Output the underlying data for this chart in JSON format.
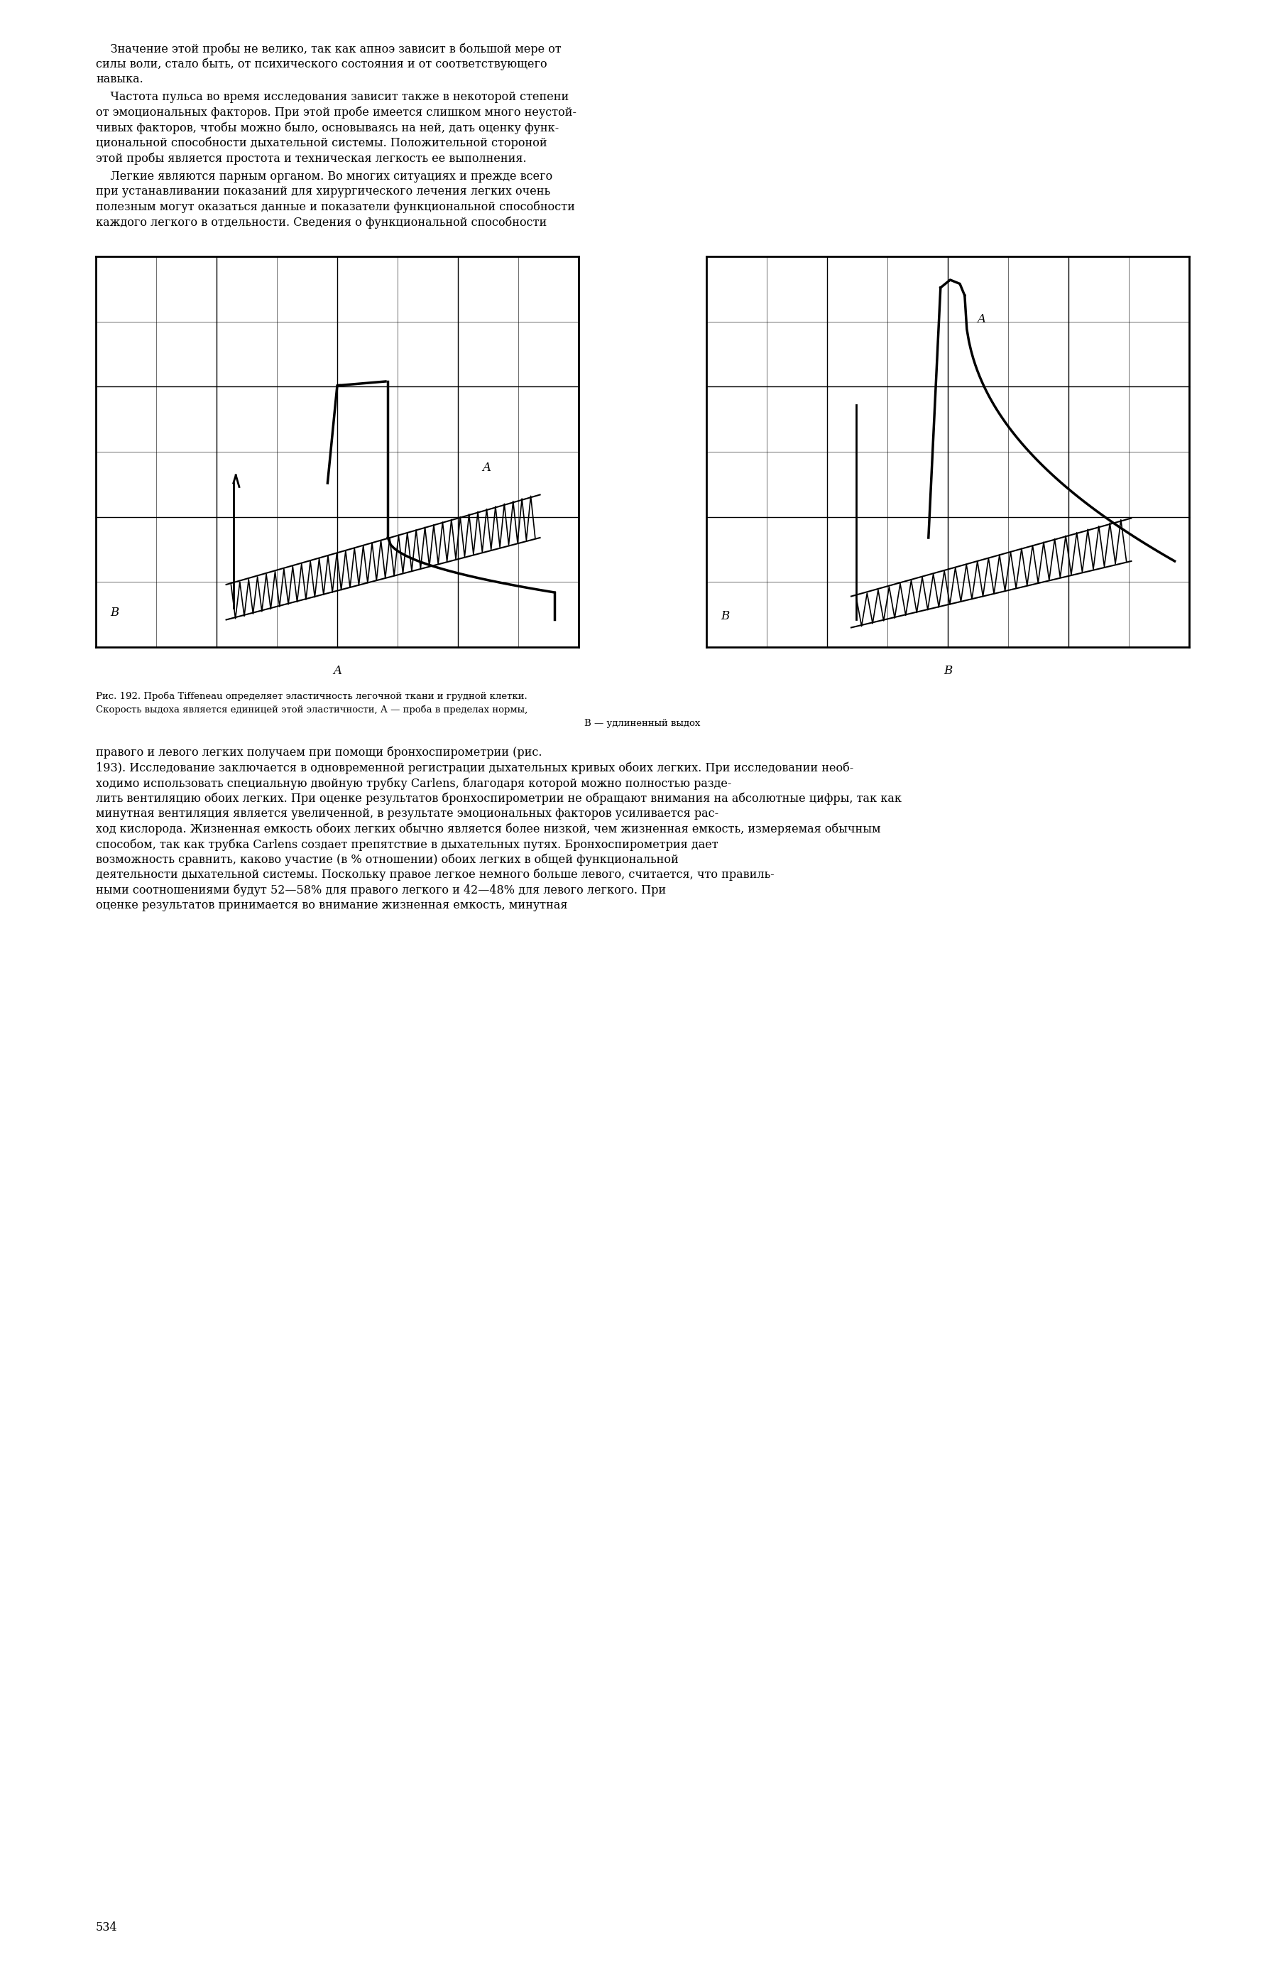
{
  "bg_color": "#ffffff",
  "text_color": "#000000",
  "page_width": 18.1,
  "page_height": 27.72,
  "top_para1_lines": [
    "    Значение этой пробы не велико, так как апноэ зависит в большой мере от",
    "силы воли, стало быть, от психического состояния и от соответствующего",
    "навыка."
  ],
  "top_para2_lines": [
    "    Частота пульса во время исследования зависит также в некоторой степени",
    "от эмоциональных факторов. При этой пробе имеется слишком много неустой-",
    "чивых факторов, чтобы можно было, основываясь на ней, дать оценку функ-",
    "циональной способности дыхательной системы. Положительной стороной",
    "этой пробы является простота и техническая легкость ее выполнения."
  ],
  "top_para3_lines": [
    "    Легкие являются парным органом. Во многих ситуациях и прежде всего",
    "при устанавливании показаний для хирургического лечения легких очень",
    "полезным могут оказаться данные и показатели функциональной способности",
    "каждого легкого в отдельности. Сведения о функциональной способности"
  ],
  "caption_lines": [
    "Рис. 192. Проба Tiffeneau определяет эластичность легочной ткани и грудной клетки.",
    "Скорость выдоха является единицей этой эластичности, А — проба в пределах нормы,",
    "В — удлиненный выдох"
  ],
  "bottom_para_lines": [
    "правого и левого легких получаем при помощи бронхоспирометрии (рис.",
    "193). Исследование заключается в одновременной регистрации дыхательных кривых обоих легких. При исследовании необ-",
    "ходимо использовать специальную двойную трубку Carlens, благодаря которой можно полностью разде-",
    "лить вентиляцию обоих легких. При оценке результатов бронхоспирометрии не обращают внимания на абсолютные цифры, так как",
    "минутная вентиляция является увеличенной, в результате эмоциональных факторов усиливается рас-",
    "ход кислорода. Жизненная емкость обоих легких обычно является более низкой, чем жизненная емкость, измеряемая обычным",
    "способом, так как трубка Carlens создает препятствие в дыхательных путях. Бронхоспирометрия дает",
    "возможность сравнить, каково участие (в % отношении) обоих легких в общей функциональной",
    "деятельности дыхательной системы. Поскольку правое легкое немного больше левого, считается, что правиль-",
    "ными соотношениями будут 52—58% для правого легкого и 42—48% для левого легкого. При",
    "оценке результатов принимается во внимание жизненная емкость, минутная"
  ],
  "page_number": "534"
}
